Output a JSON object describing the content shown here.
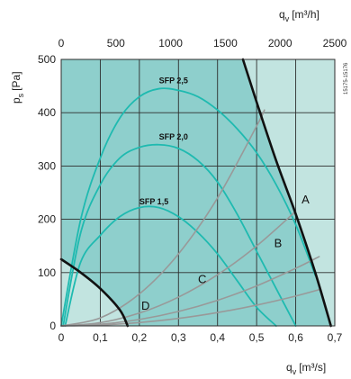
{
  "chart_data": {
    "type": "line",
    "x_bottom": {
      "label": "q",
      "subscript": "v",
      "unit": "[m3/s]",
      "range": [
        0,
        0.7
      ],
      "ticks": [
        "0",
        "0,1",
        "0,2",
        "0,3",
        "0,4",
        "0,5",
        "0,6",
        "0,7"
      ]
    },
    "x_top": {
      "label": "q",
      "subscript": "v",
      "unit": "[m3/h]",
      "range": [
        0,
        2500
      ],
      "ticks": [
        "0",
        "500",
        "1000",
        "1500",
        "2000",
        "2500"
      ]
    },
    "y": {
      "label": "p",
      "subscript": "s",
      "unit": "[Pa]",
      "range": [
        0,
        500
      ],
      "ticks": [
        "0",
        "100",
        "200",
        "300",
        "400",
        "500"
      ]
    },
    "grid": true,
    "reference_number": "15175-15176",
    "colors": {
      "light_region": "#c2e4e0",
      "operating_region": "#8ecfcc",
      "sfp": "#1fbab0",
      "system_curves": "#999999",
      "fan_limits": "#111111"
    },
    "series": [
      {
        "name": "SFP 2,5",
        "style": "sfp",
        "label_at": [
          0.25,
          455
        ],
        "x": [
          0.0,
          0.05,
          0.1,
          0.15,
          0.2,
          0.25,
          0.3,
          0.35,
          0.4,
          0.45,
          0.5,
          0.55,
          0.6,
          0.65
        ],
        "y": [
          0,
          200,
          315,
          390,
          430,
          445,
          442,
          430,
          405,
          370,
          325,
          265,
          190,
          95
        ]
      },
      {
        "name": "SFP 2,0",
        "style": "sfp",
        "label_at": [
          0.25,
          350
        ],
        "x": [
          0.005,
          0.05,
          0.1,
          0.15,
          0.2,
          0.25,
          0.3,
          0.35,
          0.4,
          0.45,
          0.5,
          0.55,
          0.6
        ],
        "y": [
          0,
          175,
          265,
          315,
          335,
          340,
          333,
          310,
          270,
          210,
          140,
          70,
          0
        ]
      },
      {
        "name": "SFP 1,5",
        "style": "sfp",
        "label_at": [
          0.2,
          228
        ],
        "x": [
          0.01,
          0.05,
          0.1,
          0.15,
          0.2,
          0.25,
          0.3,
          0.35,
          0.4,
          0.45,
          0.5,
          0.55
        ],
        "y": [
          0,
          120,
          170,
          205,
          222,
          222,
          205,
          175,
          135,
          85,
          35,
          0
        ]
      },
      {
        "name": "A",
        "style": "system",
        "label_at": [
          0.615,
          230
        ],
        "x": [
          0.0,
          0.1,
          0.2,
          0.3,
          0.4,
          0.5,
          0.52
        ],
        "y": [
          0,
          15,
          60,
          135,
          240,
          375,
          405
        ]
      },
      {
        "name": "B",
        "style": "system",
        "label_at": [
          0.545,
          148
        ],
        "x": [
          0.0,
          0.1,
          0.2,
          0.3,
          0.4,
          0.5,
          0.6
        ],
        "y": [
          0,
          6,
          24,
          54,
          96,
          150,
          215
        ]
      },
      {
        "name": "C",
        "style": "system",
        "label_at": [
          0.35,
          80
        ],
        "x": [
          0.0,
          0.1,
          0.2,
          0.3,
          0.4,
          0.5,
          0.6,
          0.66
        ],
        "y": [
          0,
          3,
          12,
          27,
          48,
          75,
          108,
          130
        ]
      },
      {
        "name": "D",
        "style": "system",
        "label_at": [
          0.205,
          30
        ],
        "x": [
          0.0,
          0.1,
          0.2,
          0.3,
          0.4,
          0.5,
          0.6,
          0.66
        ],
        "y": [
          0,
          1.6,
          6.3,
          14,
          25,
          39,
          56,
          68
        ]
      },
      {
        "name": "",
        "style": "limit",
        "x": [
          0.465,
          0.5,
          0.55,
          0.6,
          0.65,
          0.69
        ],
        "y": [
          500,
          420,
          310,
          210,
          100,
          0
        ]
      },
      {
        "name": "",
        "style": "limit",
        "x": [
          0.0,
          0.05,
          0.1,
          0.15,
          0.17
        ],
        "y": [
          125,
          100,
          70,
          30,
          0
        ]
      }
    ]
  }
}
